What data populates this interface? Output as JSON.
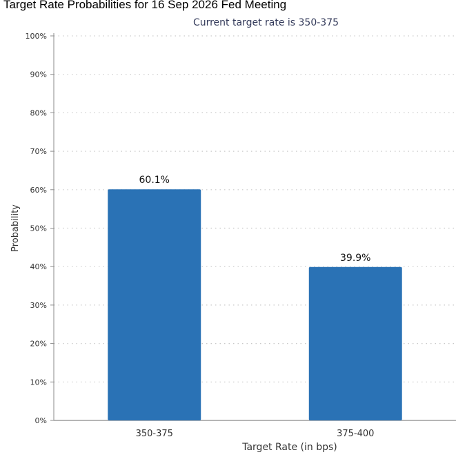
{
  "title": "Target Rate Probabilities for 16 Sep 2026 Fed Meeting",
  "subtitle": "Current target rate is 350-375",
  "colors": {
    "bar": "#2a72b5",
    "grid": "#c9c9c9",
    "axis": "#8a8a8a",
    "text": "#333333"
  },
  "chart_data": {
    "type": "bar",
    "title": "Target Rate Probabilities for 16 Sep 2026 Fed Meeting",
    "subtitle": "Current target rate is 350-375",
    "xlabel": "Target Rate (in bps)",
    "ylabel": "Probability",
    "categories": [
      "350-375",
      "375-400"
    ],
    "values": [
      60.1,
      39.9
    ],
    "data_labels": [
      "60.1%",
      "39.9%"
    ],
    "ylim": [
      0,
      100
    ],
    "yticks": [
      "0%",
      "10%",
      "20%",
      "30%",
      "40%",
      "50%",
      "60%",
      "70%",
      "80%",
      "90%",
      "100%"
    ],
    "grid": true
  }
}
